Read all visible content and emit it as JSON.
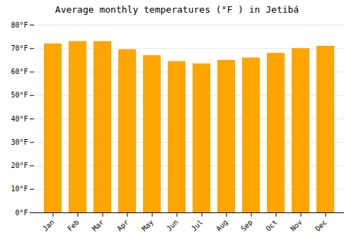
{
  "chart_data": {
    "type": "bar",
    "title": "Average monthly temperatures (°F ) in Jetibá",
    "categories": [
      "Jan",
      "Feb",
      "Mar",
      "Apr",
      "May",
      "Jun",
      "Jul",
      "Aug",
      "Sep",
      "Oct",
      "Nov",
      "Dec"
    ],
    "values": [
      72,
      73,
      73,
      69.5,
      67,
      64.5,
      63.5,
      65,
      66,
      68,
      70,
      71
    ],
    "color": "#FFA500",
    "ylim": [
      0,
      80
    ],
    "yticks": [
      {
        "value": 0,
        "label": "0°F"
      },
      {
        "value": 10,
        "label": "10°F"
      },
      {
        "value": 20,
        "label": "20°F"
      },
      {
        "value": 30,
        "label": "30°F"
      },
      {
        "value": 40,
        "label": "40°F"
      },
      {
        "value": 50,
        "label": "50°F"
      },
      {
        "value": 60,
        "label": "60°F"
      },
      {
        "value": 70,
        "label": "70°F"
      },
      {
        "value": 80,
        "label": "80°F"
      }
    ],
    "grid": true
  }
}
